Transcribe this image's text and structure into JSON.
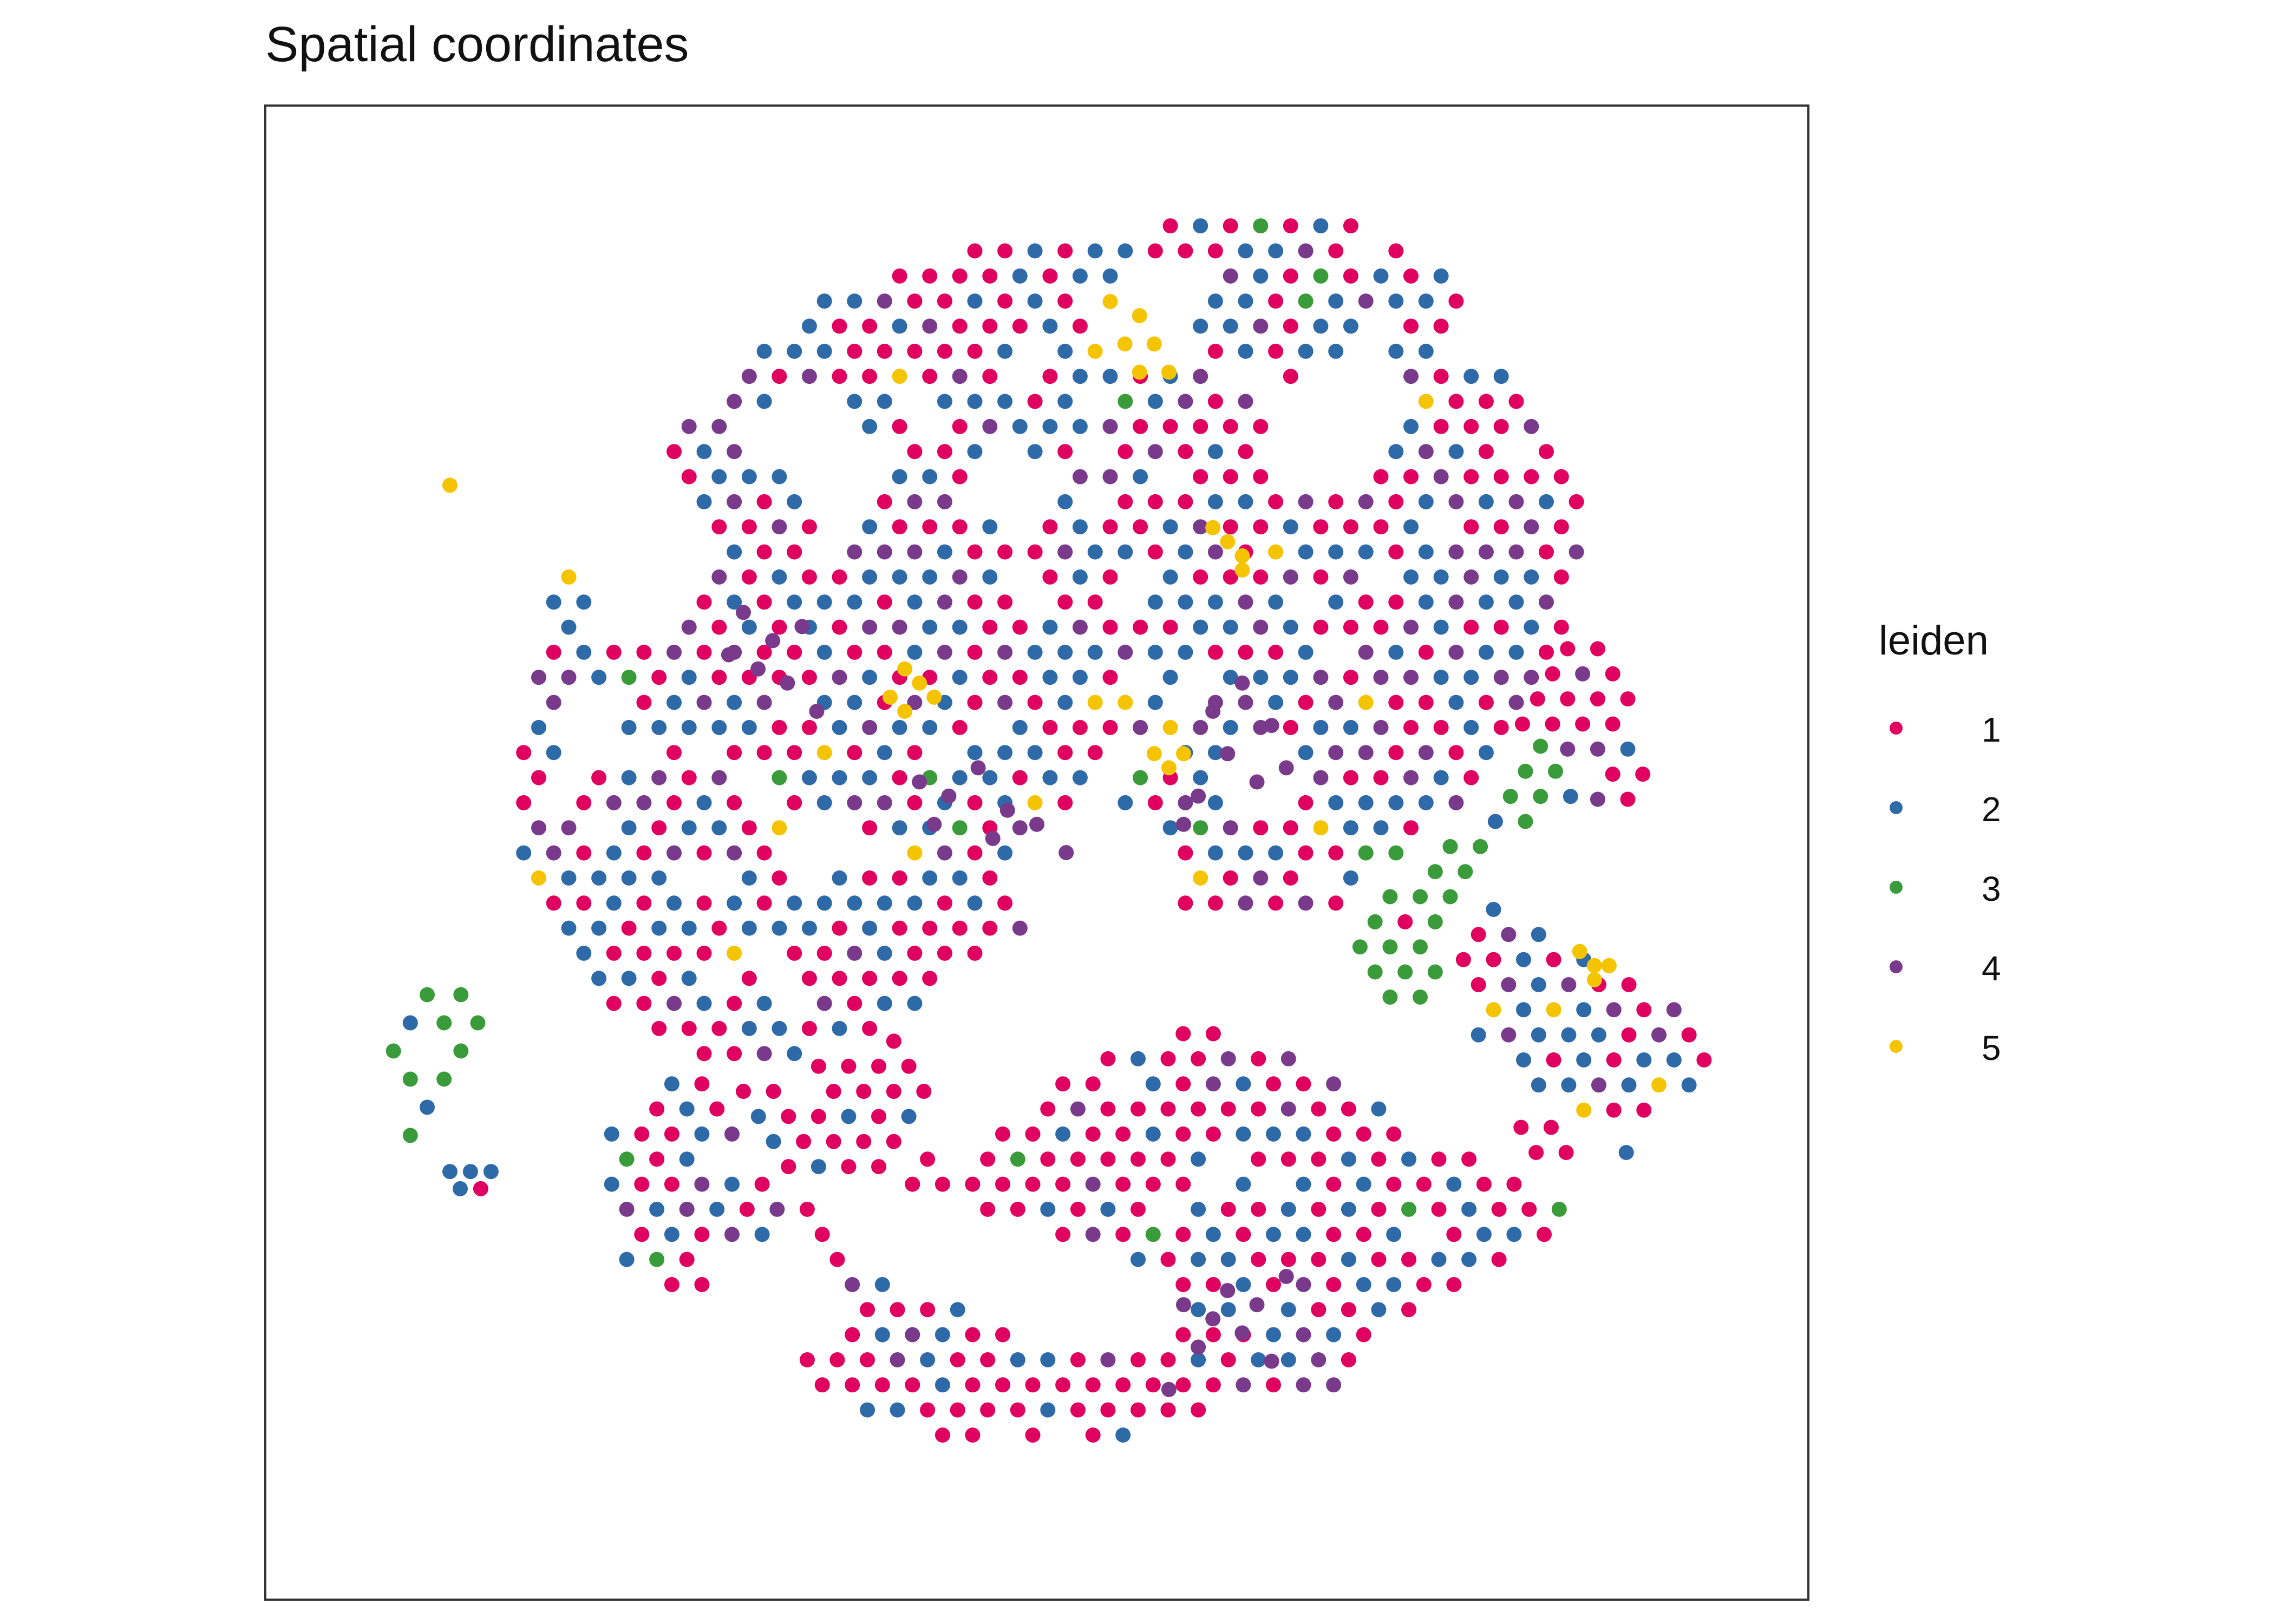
{
  "chart_data": {
    "type": "scatter",
    "title": "Spatial coordinates",
    "xlabel": "",
    "ylabel": "",
    "grid": false,
    "legend": {
      "title": "leiden",
      "placement": "right",
      "entries": [
        "1",
        "2",
        "3",
        "4",
        "5"
      ]
    },
    "colors": {
      "1": "#e0005f",
      "2": "#2e6aa8",
      "3": "#3a9b3a",
      "4": "#7a3a8c",
      "5": "#f5c400"
    },
    "xlim": [
      0,
      100
    ],
    "ylim": [
      0,
      100
    ],
    "regions": [
      {
        "cluster": "2",
        "polygon": [
          [
            17,
            68
          ],
          [
            22,
            76
          ],
          [
            35,
            90
          ],
          [
            50,
            94
          ],
          [
            70,
            95
          ],
          [
            78,
            92
          ],
          [
            80,
            85
          ],
          [
            84,
            82
          ],
          [
            88,
            75
          ],
          [
            86,
            65
          ],
          [
            80,
            55
          ],
          [
            76,
            50
          ],
          [
            70,
            46
          ],
          [
            60,
            45
          ],
          [
            50,
            45
          ],
          [
            40,
            38
          ],
          [
            30,
            34
          ],
          [
            20,
            40
          ],
          [
            14,
            50
          ],
          [
            15,
            60
          ]
        ],
        "spacing": 2.05,
        "seed": 11,
        "mix": {
          "1": 0.42,
          "2": 0.38,
          "4": 0.16,
          "3": 0.02,
          "5": 0.02
        }
      },
      {
        "cluster": "3",
        "polygon": [
          [
            71,
            60
          ],
          [
            75,
            70
          ],
          [
            77,
            76
          ],
          [
            80,
            72
          ],
          [
            80,
            66
          ],
          [
            85,
            58
          ],
          [
            88,
            54
          ],
          [
            80,
            50
          ],
          [
            77,
            40
          ],
          [
            74,
            38
          ],
          [
            71,
            45
          ]
        ],
        "spacing": 2.05,
        "seed": 23,
        "mix": {
          "3": 0.82,
          "2": 0.12,
          "1": 0.06
        }
      },
      {
        "cluster": "1",
        "polygon": [
          [
            79,
            70
          ],
          [
            84,
            68
          ],
          [
            90,
            63
          ],
          [
            92,
            56
          ],
          [
            91,
            52
          ],
          [
            84,
            55
          ],
          [
            80,
            62
          ]
        ],
        "spacing": 2.05,
        "seed": 37,
        "mix": {
          "1": 0.45,
          "4": 0.45,
          "2": 0.1
        }
      },
      {
        "cluster": "1",
        "polygon": [
          [
            76,
            46
          ],
          [
            82,
            46
          ],
          [
            90,
            42
          ],
          [
            96,
            38
          ],
          [
            96,
            32
          ],
          [
            90,
            30
          ],
          [
            85,
            33
          ],
          [
            80,
            36
          ],
          [
            77,
            40
          ]
        ],
        "spacing": 2.05,
        "seed": 41,
        "mix": {
          "1": 0.35,
          "4": 0.3,
          "2": 0.3,
          "5": 0.05
        }
      },
      {
        "cluster": "2",
        "polygon": [
          [
            83,
            32
          ],
          [
            88,
            32
          ],
          [
            93,
            31
          ],
          [
            93,
            28
          ],
          [
            88,
            27
          ],
          [
            83,
            28
          ]
        ],
        "spacing": 2.05,
        "seed": 43,
        "mix": {
          "2": 0.7,
          "1": 0.3
        }
      },
      {
        "cluster": "1",
        "polygon": [
          [
            30,
            42
          ],
          [
            35,
            46
          ],
          [
            40,
            40
          ],
          [
            43,
            32
          ],
          [
            40,
            28
          ],
          [
            35,
            26
          ],
          [
            30,
            30
          ]
        ],
        "spacing": 2.05,
        "seed": 53,
        "mix": {
          "1": 0.6,
          "2": 0.28,
          "4": 0.1,
          "3": 0.02
        }
      },
      {
        "cluster": "2",
        "polygon": [
          [
            20,
            30
          ],
          [
            25,
            34
          ],
          [
            32,
            34
          ],
          [
            40,
            31
          ],
          [
            45,
            28
          ],
          [
            53,
            35
          ],
          [
            60,
            38
          ],
          [
            67,
            36
          ],
          [
            75,
            32
          ],
          [
            80,
            28
          ],
          [
            88,
            24
          ],
          [
            85,
            22
          ],
          [
            76,
            18
          ],
          [
            67,
            9
          ],
          [
            60,
            7
          ],
          [
            50,
            8
          ],
          [
            40,
            9
          ],
          [
            35,
            12
          ],
          [
            30,
            17
          ],
          [
            22,
            20
          ]
        ],
        "spacing": 2.05,
        "seed": 67,
        "mix": {
          "1": 0.55,
          "2": 0.32,
          "4": 0.09,
          "3": 0.04
        }
      },
      {
        "cluster": "3",
        "polygon": [
          [
            5,
            38
          ],
          [
            11,
            42
          ],
          [
            13,
            36
          ],
          [
            9,
            30
          ],
          [
            12,
            26
          ],
          [
            7,
            30
          ]
        ],
        "spacing": 2.3,
        "seed": 71,
        "mix": {
          "3": 0.6,
          "2": 0.3,
          "1": 0.1
        }
      },
      {
        "cluster": "1",
        "polygon": [
          [
            10,
            28
          ],
          [
            13,
            28
          ],
          [
            14,
            26
          ],
          [
            12,
            25
          ],
          [
            10,
            26
          ]
        ],
        "spacing": 1.4,
        "seed": 73,
        "mix": {
          "1": 0.5,
          "2": 0.5
        }
      }
    ],
    "holes": [
      {
        "polygon": [
          [
            18,
            74
          ],
          [
            25,
            78
          ],
          [
            28,
            72
          ],
          [
            25,
            66
          ],
          [
            20,
            64
          ]
        ]
      },
      {
        "polygon": [
          [
            30,
            80
          ],
          [
            36,
            84
          ],
          [
            40,
            78
          ],
          [
            36,
            72
          ]
        ]
      },
      {
        "polygon": [
          [
            53,
            89
          ],
          [
            57,
            92
          ],
          [
            62,
            90
          ],
          [
            60,
            85
          ],
          [
            55,
            84
          ]
        ]
      },
      {
        "polygon": [
          [
            65,
            82
          ],
          [
            72,
            86
          ],
          [
            76,
            82
          ],
          [
            72,
            76
          ],
          [
            66,
            76
          ]
        ]
      },
      {
        "polygon": [
          [
            45,
            74
          ],
          [
            48,
            79
          ],
          [
            52,
            77
          ],
          [
            50,
            72
          ]
        ]
      },
      {
        "polygon": [
          [
            17,
            60
          ],
          [
            21,
            62
          ],
          [
            22,
            56
          ],
          [
            18,
            55
          ]
        ]
      },
      {
        "polygon": [
          [
            62,
            56
          ],
          [
            66,
            58
          ],
          [
            68,
            54
          ],
          [
            63,
            52
          ]
        ]
      },
      {
        "polygon": [
          [
            33,
            50
          ],
          [
            36,
            54
          ],
          [
            38,
            49
          ]
        ]
      },
      {
        "polygon": [
          [
            48,
            50
          ],
          [
            53,
            54
          ],
          [
            58,
            52
          ],
          [
            60,
            46
          ],
          [
            56,
            43
          ],
          [
            50,
            44
          ]
        ]
      },
      {
        "polygon": [
          [
            36,
            27
          ],
          [
            44,
            26
          ],
          [
            52,
            22
          ],
          [
            58,
            20
          ],
          [
            60,
            16
          ],
          [
            52,
            14
          ],
          [
            44,
            18
          ],
          [
            37,
            21
          ]
        ]
      },
      {
        "polygon": [
          [
            28,
            22
          ],
          [
            35,
            24
          ],
          [
            36,
            16
          ],
          [
            30,
            14
          ]
        ]
      },
      {
        "polygon": [
          [
            55,
            8
          ],
          [
            62,
            6
          ],
          [
            70,
            5
          ],
          [
            75,
            8
          ],
          [
            68,
            12
          ]
        ]
      },
      {
        "polygon": [
          [
            80,
            18
          ],
          [
            86,
            16
          ],
          [
            90,
            10
          ],
          [
            85,
            10
          ],
          [
            78,
            14
          ]
        ]
      }
    ],
    "hotspots": [
      {
        "cluster": "5",
        "x": [
          57,
          56,
          58,
          55,
          59,
          57
        ],
        "y": [
          88,
          86,
          86,
          89,
          84,
          84
        ]
      },
      {
        "cluster": "5",
        "x": [
          63,
          64,
          62,
          64
        ],
        "y": [
          72,
          71,
          73,
          70
        ]
      },
      {
        "cluster": "5",
        "x": [
          41,
          42,
          40,
          43,
          41
        ],
        "y": [
          63,
          62,
          61,
          61,
          60
        ]
      },
      {
        "cluster": "5",
        "x": [
          58,
          59,
          60
        ],
        "y": [
          57,
          56,
          57
        ]
      },
      {
        "cluster": "5",
        "x": [
          87,
          88,
          89,
          88
        ],
        "y": [
          43,
          42,
          42,
          41
        ]
      },
      {
        "cluster": "5",
        "x": [
          10
        ],
        "y": [
          76
        ]
      },
      {
        "cluster": "4",
        "x": [
          42,
          44,
          46,
          48,
          43,
          47,
          50,
          52
        ],
        "y": [
          55,
          54,
          56,
          53,
          52,
          51,
          52,
          50
        ]
      },
      {
        "cluster": "4",
        "x": [
          62,
          64,
          66,
          63,
          65,
          67,
          60,
          61
        ],
        "y": [
          60,
          62,
          59,
          57,
          55,
          56,
          52,
          54
        ]
      },
      {
        "cluster": "4",
        "x": [
          30,
          32,
          34,
          31,
          33,
          29,
          35
        ],
        "y": [
          67,
          65,
          66,
          63,
          62,
          64,
          60
        ]
      },
      {
        "cluster": "4",
        "x": [
          60,
          62,
          63,
          65,
          61,
          64,
          66,
          67,
          59
        ],
        "y": [
          18,
          17,
          19,
          18,
          15,
          16,
          14,
          20,
          12
        ]
      }
    ]
  }
}
